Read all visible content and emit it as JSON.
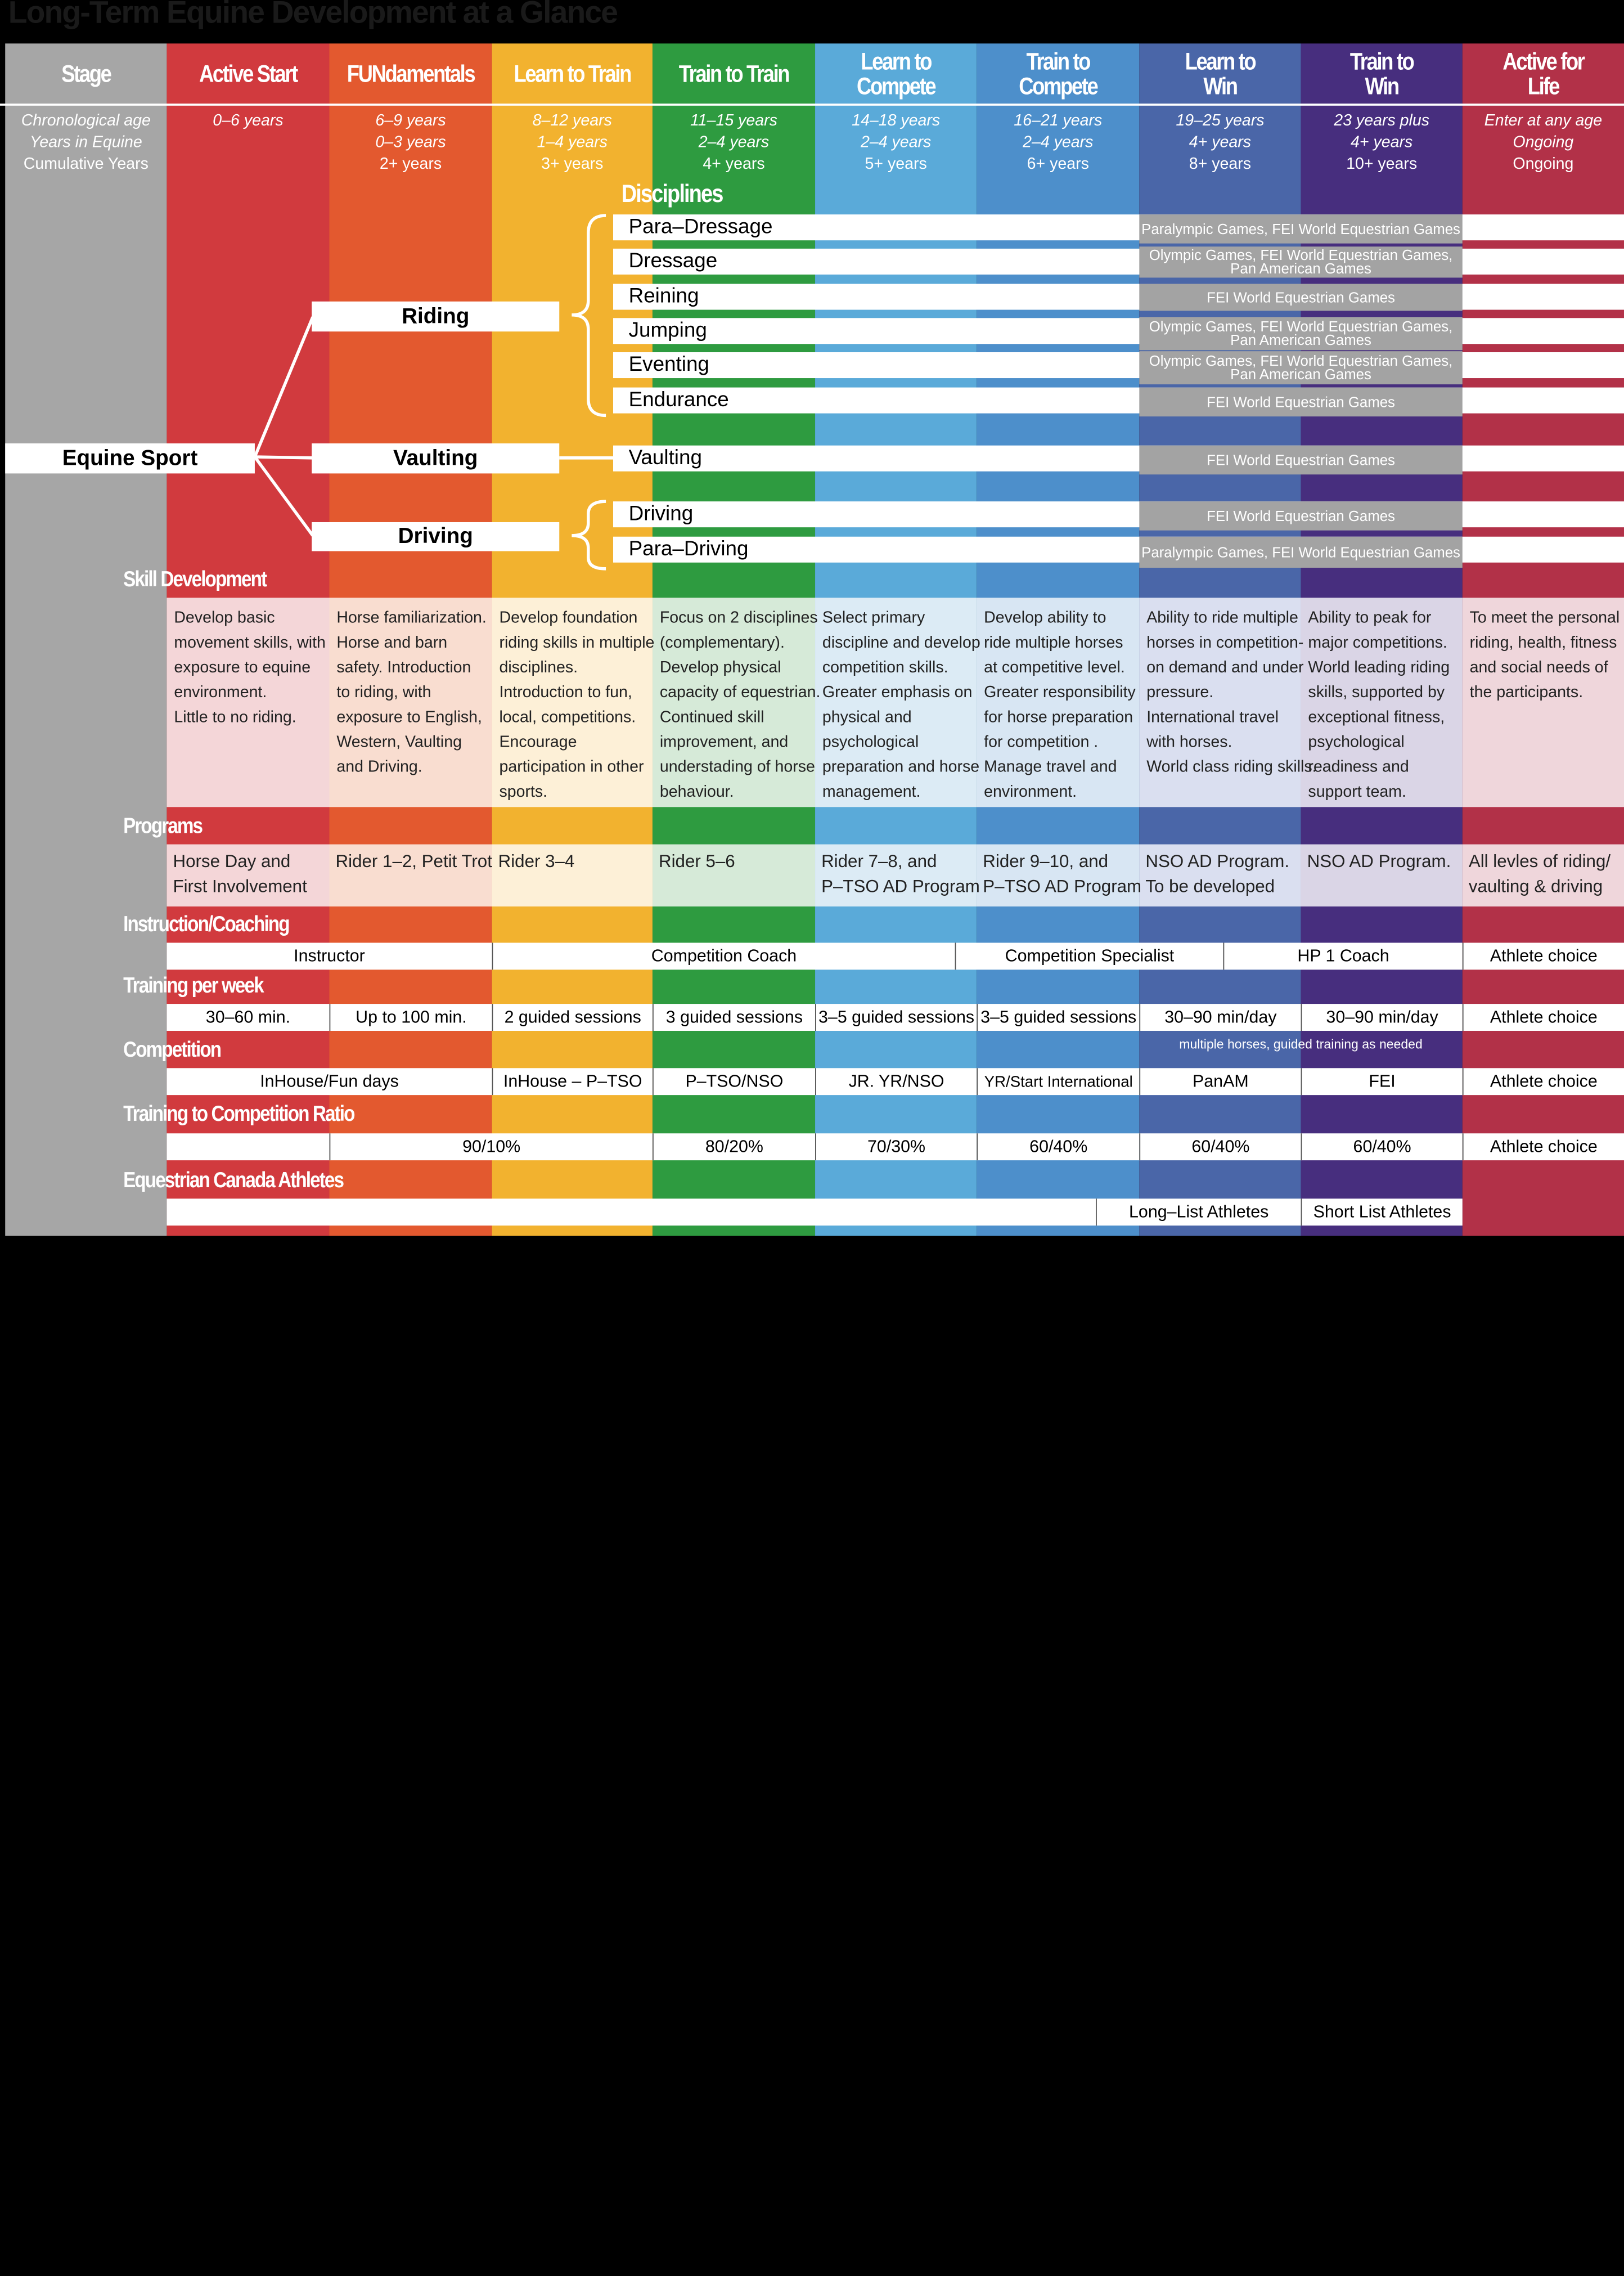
{
  "title": "Long-Term Equine Development at a Glance",
  "stages": [
    {
      "name": "Stage",
      "color": "#a6a6a6",
      "age": "Chronological age",
      "years": "Years in Equine",
      "cumulative": "Cumulative Years"
    },
    {
      "name": "Active Start",
      "color": "#d13a3e",
      "age": "0–6 years",
      "years": "",
      "cumulative": ""
    },
    {
      "name": "FUNdamentals",
      "color": "#e3592f",
      "age": "6–9 years",
      "years": "0–3 years",
      "cumulative": "2+ years"
    },
    {
      "name": "Learn to Train",
      "color": "#f2b22f",
      "age": "8–12 years",
      "years": "1–4 years",
      "cumulative": "3+ years"
    },
    {
      "name": "Train to Train",
      "color": "#2e9b40",
      "age": "11–15 years",
      "years": "2–4 years",
      "cumulative": "4+ years"
    },
    {
      "name": "Learn to Compete",
      "color": "#5aaad9",
      "age": "14–18 years",
      "years": "2–4 years",
      "cumulative": "5+ years"
    },
    {
      "name": "Train to Compete",
      "color": "#4d8fcb",
      "age": "16–21 years",
      "years": "2–4  years",
      "cumulative": "6+  years"
    },
    {
      "name": "Learn to Win",
      "color": "#4a66a8",
      "age": "19–25 years",
      "years": "4+ years",
      "cumulative": "8+ years"
    },
    {
      "name": "Train to Win",
      "color": "#472e7e",
      "age": "23 years plus",
      "years": "4+ years",
      "cumulative": "10+ years"
    },
    {
      "name": "Active for Life",
      "color": "#b23148",
      "age": "Enter at any age",
      "years": "Ongoing",
      "cumulative": "Ongoing"
    }
  ],
  "tree": {
    "root": "Equine Sport",
    "branches": [
      "Riding",
      "Vaulting",
      "Driving"
    ],
    "disciplines_label": "Disciplines"
  },
  "disciplines": [
    {
      "name": "Para–Dressage",
      "events": [
        "Paralympic Games, FEI World Equestrian Games"
      ]
    },
    {
      "name": "Dressage",
      "events": [
        "Olympic  Games, FEI World Equestrian Games,",
        "Pan American Games"
      ]
    },
    {
      "name": "Reining",
      "events": [
        "FEI World Equestrian Games"
      ]
    },
    {
      "name": "Jumping",
      "events": [
        "Olympic  Games, FEI World Equestrian Games,",
        "Pan American Games"
      ]
    },
    {
      "name": "Eventing",
      "events": [
        "Olympic  Games, FEI World Equestrian Games,",
        "Pan American Games"
      ]
    },
    {
      "name": "Endurance",
      "events": [
        "FEI World Equestrian Games"
      ]
    },
    {
      "name": "Vaulting",
      "events": [
        "FEI World Equestrian Games"
      ]
    },
    {
      "name": "Driving",
      "events": [
        "FEI World Equestrian Games"
      ]
    },
    {
      "name": "Para–Driving",
      "events": [
        "Paralympic Games, FEI World Equestrian Games"
      ]
    }
  ],
  "sections": {
    "skill_development": "Skill Development",
    "programs": "Programs",
    "instruction": "Instruction/Coaching",
    "training": "Training per week",
    "competition": "Competition",
    "ratio": "Training to Competition Ratio",
    "athletes": "Equestrian Canada Athletes"
  },
  "skill_development": [
    [
      "Develop basic",
      "movement skills, with",
      "exposure to equine",
      "environment.",
      "Little to no riding."
    ],
    [
      "Horse familiarization.",
      "Horse and barn",
      "safety. Introduction",
      "to riding, with",
      "exposure to English,",
      "Western, Vaulting",
      "and Driving."
    ],
    [
      "Develop foundation",
      "riding skills in multiple",
      "disciplines.",
      "Introduction to fun,",
      "local, competitions.",
      "Encourage",
      "participation in other",
      "sports."
    ],
    [
      "Focus on 2 disciplines",
      "(complementary).",
      "Develop physical",
      "capacity of equestrian.",
      "Continued skill",
      "improvement, and",
      "understading of horse",
      "behaviour."
    ],
    [
      "Select primary",
      "discipline and develop",
      "competition skills.",
      "Greater emphasis on",
      "physical and",
      "psychological",
      "preparation and horse",
      "management."
    ],
    [
      "Develop ability to",
      "ride multiple horses",
      "at competitive level.",
      "Greater responsibility",
      "for horse preparation",
      "for competition .",
      "Manage travel and",
      "environment."
    ],
    [
      "Ability to ride multiple",
      "horses in competition-",
      "on demand and under",
      "pressure.",
      "International travel",
      "with horses.",
      "World class riding skills."
    ],
    [
      "Ability to peak for",
      "major competitions.",
      "World leading riding",
      "skills, supported by",
      "exceptional fitness,",
      "psychological",
      "readiness and",
      "support team."
    ],
    [
      "To meet the personal",
      "riding, health, fitness",
      "and social needs of",
      "the participants."
    ]
  ],
  "programs": [
    [
      "Horse Day and",
      "First Involvement"
    ],
    [
      "Rider 1–2, Petit Trot"
    ],
    [
      "Rider 3–4"
    ],
    [
      "Rider 5–6"
    ],
    [
      "Rider 7–8, and",
      "P–TSO AD Program"
    ],
    [
      "Rider 9–10, and",
      "P–TSO AD Program"
    ],
    [
      "NSO AD Program.",
      "To be developed"
    ],
    [
      "NSO AD Program."
    ],
    [
      "All levles of riding/",
      "vaulting & driving"
    ]
  ],
  "instruction": [
    "Instructor",
    "Competition Coach",
    "Competition Specialist",
    "HP 1 Coach",
    "Athlete choice"
  ],
  "training": [
    "30–60 min.",
    "Up to 100 min.",
    "2 guided sessions",
    "3 guided sessions",
    "3–5 guided sessions",
    "3–5 guided sessions",
    "30–90 min/day",
    "30–90 min/day",
    "Athlete choice"
  ],
  "competition_note": "multiple horses, guided training as needed",
  "competition": [
    "InHouse/Fun days",
    "InHouse – P–TSO",
    "P–TSO/NSO",
    "JR. YR/NSO",
    "YR/Start International",
    "PanAM",
    "FEI",
    "Athlete choice"
  ],
  "ratio": [
    "90/10%",
    "80/20%",
    "70/30%",
    "60/40%",
    "60/40%",
    "60/40%",
    "Athlete choice"
  ],
  "athletes": [
    "Long–List Athletes",
    "Short List Athletes"
  ]
}
